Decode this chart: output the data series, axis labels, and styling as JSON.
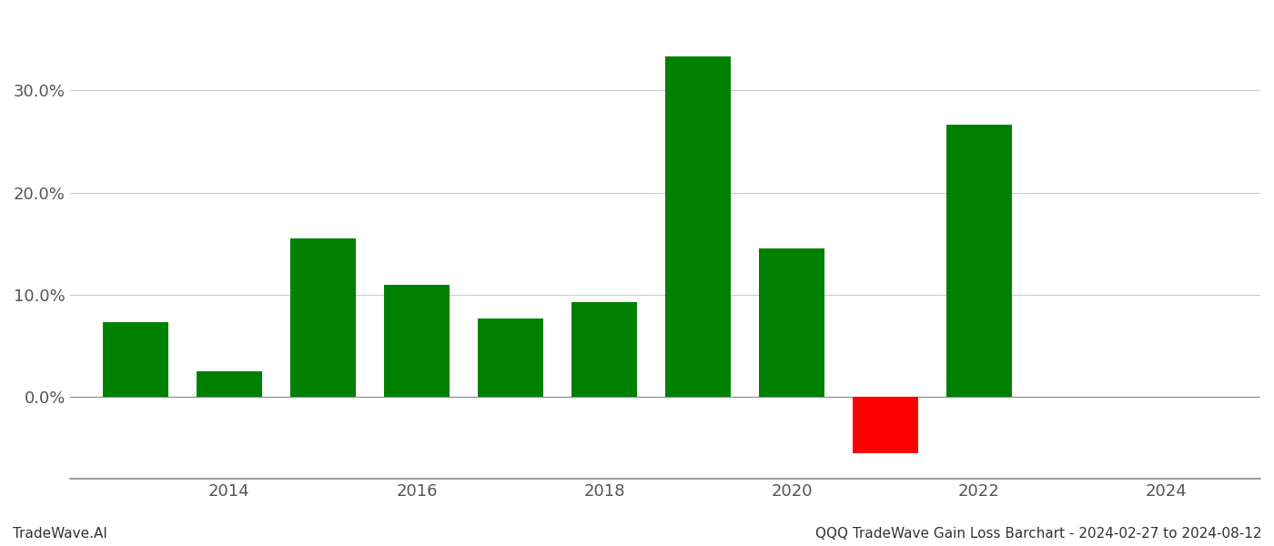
{
  "years": [
    2013,
    2014,
    2015,
    2016,
    2017,
    2018,
    2019,
    2020,
    2021,
    2022,
    2023
  ],
  "values": [
    0.073,
    0.025,
    0.155,
    0.11,
    0.077,
    0.093,
    0.333,
    0.145,
    -0.055,
    0.266,
    0.0
  ],
  "colors": [
    "#008000",
    "#008000",
    "#008000",
    "#008000",
    "#008000",
    "#008000",
    "#008000",
    "#008000",
    "#ff0000",
    "#008000",
    "#ffffff"
  ],
  "footer_left": "TradeWave.AI",
  "footer_right": "QQQ TradeWave Gain Loss Barchart - 2024-02-27 to 2024-08-12",
  "ylim_min": -0.08,
  "ylim_max": 0.375,
  "xlim_min": 2012.3,
  "xlim_max": 2025.0,
  "background_color": "#ffffff",
  "grid_color": "#cccccc",
  "bar_width": 0.7,
  "x_ticks": [
    2014,
    2016,
    2018,
    2020,
    2022,
    2024
  ],
  "y_tick_step": 0.1,
  "y_ticks": [
    0.0,
    0.1,
    0.2,
    0.3
  ],
  "tick_fontsize": 13,
  "footer_fontsize": 11
}
